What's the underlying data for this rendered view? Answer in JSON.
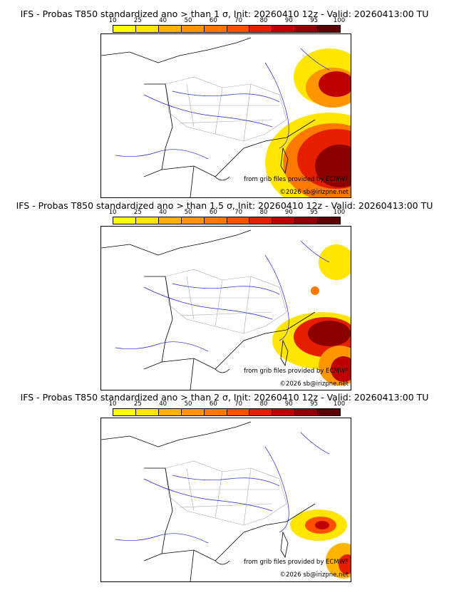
{
  "colorbar": {
    "labels": [
      "10",
      "25",
      "40",
      "50",
      "60",
      "70",
      "80",
      "90",
      "95",
      "100"
    ],
    "colors": [
      "#ffff00",
      "#ffe600",
      "#ffb400",
      "#ff9600",
      "#ff7800",
      "#ff5000",
      "#e61e00",
      "#be0000",
      "#8c0000",
      "#5a0000"
    ]
  },
  "panels": [
    {
      "title": "IFS - Probas T850  standardized ano > than 1 σ, Init: 20260410 12z - Valid: 20260413:00 TU",
      "threshold_sigma": 1
    },
    {
      "title": "IFS - Probas T850  standardized ano > than 1.5 σ, Init: 20260410 12z - Valid: 20260413:00 TU",
      "threshold_sigma": 1.5
    },
    {
      "title": "IFS - Probas T850  standardized ano > than 2 σ, Init: 20260410 12z - Valid: 20260413:00 TU",
      "threshold_sigma": 2
    }
  ],
  "credits": {
    "source": "from grib files provided by ECMWF",
    "copyright": "©2026 sb@irizpne.net"
  },
  "colors": {
    "land_border": "#000000",
    "rivers": "#2222dd",
    "regions": "#aaaaaa"
  }
}
